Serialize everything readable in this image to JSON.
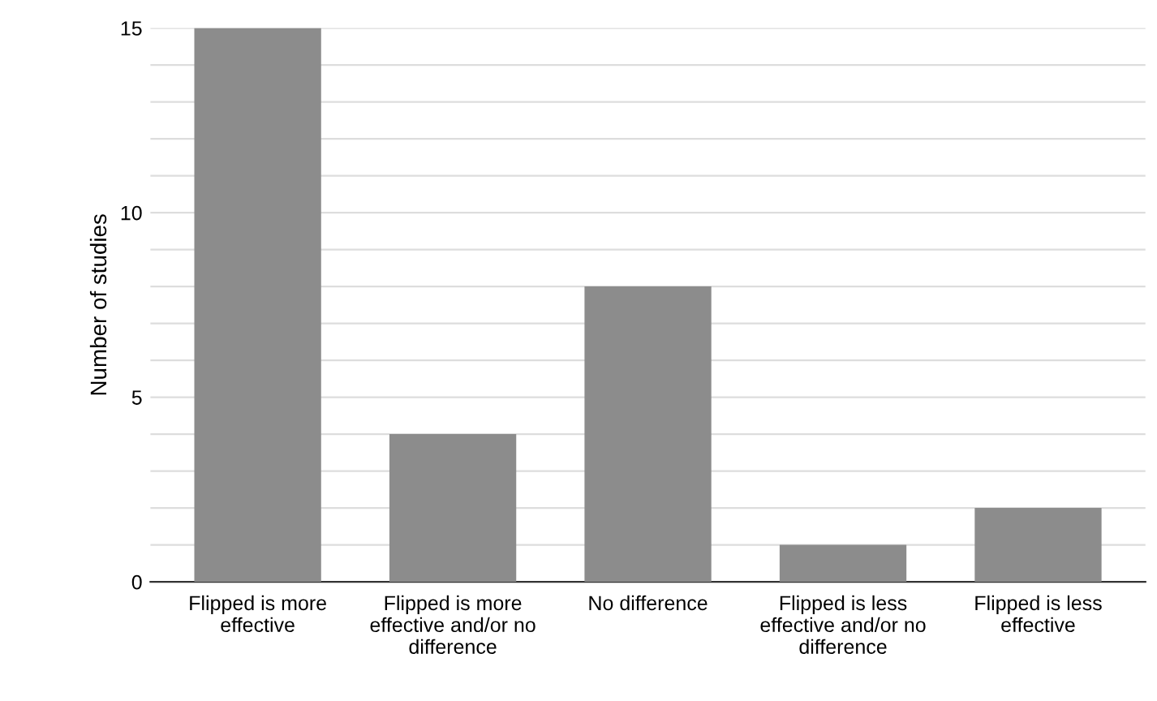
{
  "chart_data": {
    "type": "bar",
    "ylabel": "Number of studies",
    "categories": [
      "Flipped is more effective",
      "Flipped is more effective and/or no difference",
      "No difference",
      "Flipped is less effective and/or no difference",
      "Flipped is less effective"
    ],
    "values": [
      15,
      4,
      8,
      1,
      2
    ],
    "color": "#8c8c8c",
    "ylim": [
      0,
      15
    ],
    "yticks": [
      0,
      {
        "value": 1,
        "label": null
      },
      {
        "value": 2,
        "label": null
      },
      {
        "value": 3,
        "label": null
      },
      {
        "value": 4,
        "label": null
      },
      5,
      {
        "value": 6,
        "label": null
      },
      {
        "value": 7,
        "label": null
      },
      {
        "value": 8,
        "label": null
      },
      {
        "value": 9,
        "label": null
      },
      10,
      {
        "value": 11,
        "label": null
      },
      {
        "value": 12,
        "label": null
      },
      {
        "value": 13,
        "label": null
      },
      {
        "value": 14,
        "label": null
      },
      15
    ],
    "grid": "y"
  }
}
